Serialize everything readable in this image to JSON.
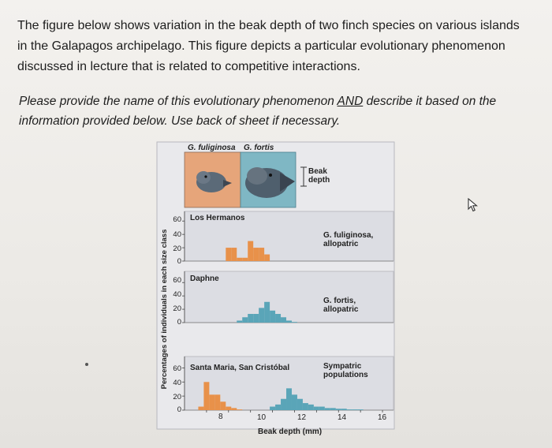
{
  "question": {
    "paragraph1": "The figure below shows variation in the beak depth of two finch species on various islands in the Galapagos archipelago. This figure depicts a particular evolutionary phenomenon discussed in lecture that is related to competitive interactions.",
    "paragraph2_before": "Please provide the name of this evolutionary phenomenon ",
    "paragraph2_underlined": "AND",
    "paragraph2_after": " describe it based on the information provided below. Use back of sheet if necessary."
  },
  "figure": {
    "species_header_left": "G. fuliginosa",
    "species_header_right": "G. fortis",
    "beak_label": "Beak\ndepth",
    "y_axis_label": "Percentages of individuals in each size class",
    "x_axis_label": "Beak depth (mm)",
    "colors": {
      "fuliginosa": "#e8914a",
      "fortis": "#5aa5b8",
      "panel_bg": "#dcdde3",
      "fuliginosa_box": "#e6a57a",
      "fortis_box": "#7fb7c4"
    },
    "panels": [
      {
        "island": "Los Hermanos",
        "note": "G. fuliginosa,\nallopatric",
        "y_ticks": [
          "60",
          "40",
          "20",
          "0"
        ]
      },
      {
        "island": "Daphne",
        "note": "G. fortis,\nallopatric",
        "y_ticks": [
          "60",
          "40",
          "20",
          "0"
        ]
      },
      {
        "island": "Santa Maria, San Cristóbal",
        "note": "Sympatric\npopulations",
        "y_ticks": [
          "60",
          "40",
          "20",
          "0"
        ]
      }
    ],
    "x_ticks": [
      "8",
      "10",
      "12",
      "14",
      "16"
    ]
  },
  "chart_data": [
    {
      "type": "bar",
      "title": "Los Hermanos",
      "x": [
        9.0,
        9.25,
        9.5,
        9.75,
        10.0,
        10.25,
        10.5,
        10.75
      ],
      "series": [
        {
          "name": "G. fuliginosa",
          "values": [
            20,
            20,
            5,
            5,
            30,
            20,
            20,
            10
          ]
        }
      ],
      "xlabel": "Beak depth (mm)",
      "ylabel": "Percentages of individuals in each size class",
      "xlim": [
        7,
        16.5
      ],
      "ylim": [
        0,
        65
      ]
    },
    {
      "type": "bar",
      "title": "Daphne",
      "x": [
        9.5,
        9.75,
        10.0,
        10.25,
        10.5,
        10.75,
        11.0,
        11.25,
        11.5,
        11.75,
        12.0
      ],
      "series": [
        {
          "name": "G. fortis",
          "values": [
            3,
            8,
            13,
            13,
            22,
            31,
            18,
            13,
            8,
            3,
            1
          ]
        }
      ],
      "xlabel": "Beak depth (mm)",
      "ylabel": "Percentages of individuals in each size class",
      "xlim": [
        7,
        16.5
      ],
      "ylim": [
        0,
        65
      ]
    },
    {
      "type": "bar",
      "title": "Santa Maria, San Cristóbal",
      "x": [
        7.75,
        8.0,
        8.25,
        8.5,
        8.75,
        9.0,
        9.25,
        9.5,
        11.0,
        11.25,
        11.5,
        11.75,
        12.0,
        12.25,
        12.5,
        12.75,
        13.0,
        13.25,
        13.5,
        13.75,
        14.0,
        14.25,
        14.5,
        14.75,
        15.0
      ],
      "series": [
        {
          "name": "G. fuliginosa",
          "values": [
            5,
            40,
            22,
            22,
            12,
            5,
            3,
            1,
            0,
            0,
            0,
            0,
            0,
            0,
            0,
            0,
            0,
            0,
            0,
            0,
            0,
            0,
            0,
            0,
            0
          ]
        },
        {
          "name": "G. fortis",
          "values": [
            0,
            0,
            0,
            0,
            0,
            0,
            0,
            0,
            5,
            8,
            16,
            31,
            22,
            16,
            10,
            8,
            5,
            5,
            3,
            3,
            2,
            2,
            1,
            1,
            1
          ]
        }
      ],
      "xlabel": "Beak depth (mm)",
      "ylabel": "Percentages of individuals in each size class",
      "xlim": [
        7,
        16.5
      ],
      "ylim": [
        0,
        65
      ]
    }
  ]
}
